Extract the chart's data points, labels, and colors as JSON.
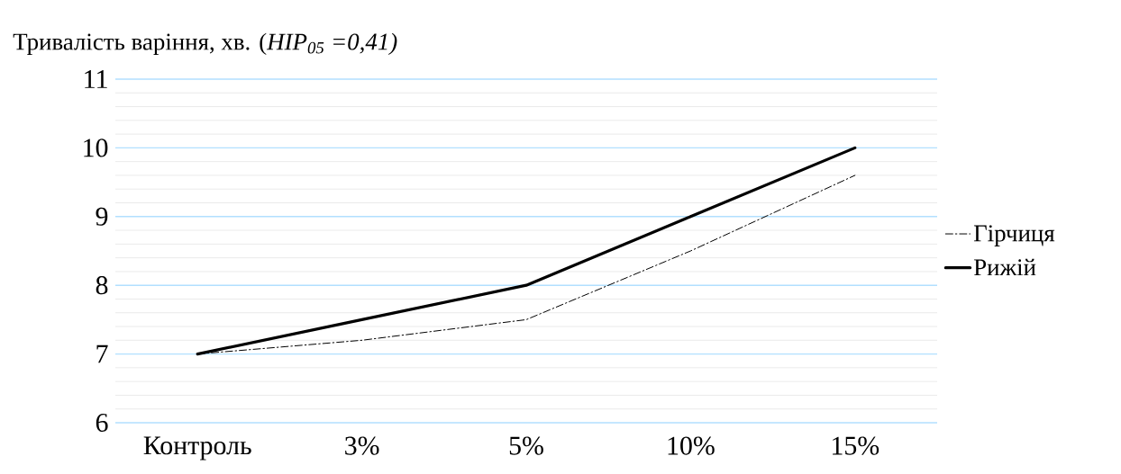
{
  "chart_data": {
    "type": "line",
    "ylabel": "Тривалість варіння, хв. (*HIP$_{05}$ =0,41)*",
    "categories": [
      "Контроль",
      "3%",
      "5%",
      "10%",
      "15%"
    ],
    "series": [
      {
        "name": "Гірчиця",
        "color": "#000000",
        "line_style": "dashed",
        "values": [
          7,
          7.2,
          7.5,
          8.5,
          9.6
        ]
      },
      {
        "name": "Рижій",
        "color": "#000000",
        "line_style": "solid",
        "values": [
          7,
          7.5,
          8,
          9,
          10
        ]
      }
    ],
    "ylim": [
      6,
      11
    ],
    "yticks": [
      6,
      7,
      8,
      9,
      10,
      11
    ],
    "grid": "y",
    "legend": "right",
    "marker": "none"
  }
}
